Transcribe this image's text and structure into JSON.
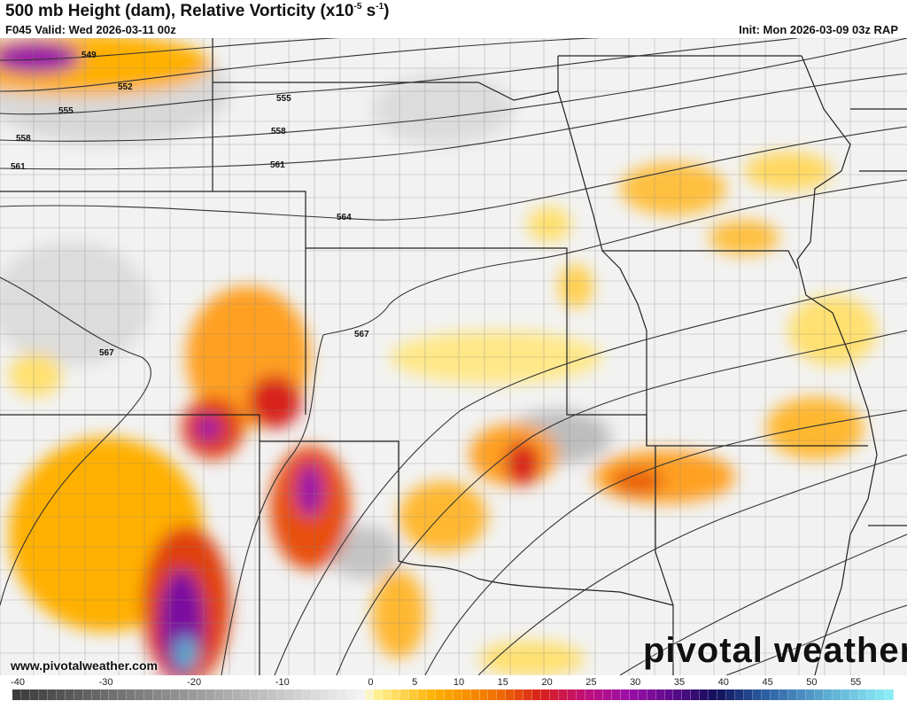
{
  "header": {
    "title": "500 mb Height (dam), Relative Vorticity (x10",
    "title_exp1": "-5",
    "title_mid": " s",
    "title_exp2": "-1",
    "title_end": ")",
    "valid": "F045 Valid: Wed 2026-03-11 00z",
    "init": "Init: Mon 2026-03-09 03z RAP"
  },
  "contour_labels": [
    "549",
    "552",
    "555",
    "558",
    "561",
    "555",
    "558",
    "561",
    "564",
    "567",
    "567"
  ],
  "watermark": "www.pivotalweather.com",
  "logo": "pivotal weather",
  "colorbar": {
    "min": -40,
    "max": 60,
    "tick_labels": [
      "-40",
      "-30",
      "-20",
      "-10",
      "0",
      "5",
      "10",
      "15",
      "20",
      "25",
      "30",
      "35",
      "40",
      "45",
      "50",
      "55"
    ],
    "tick_values": [
      -40,
      -30,
      -20,
      -10,
      0,
      5,
      10,
      15,
      20,
      25,
      30,
      35,
      40,
      45,
      50,
      55
    ],
    "color_stops": [
      [
        -40,
        "#3a3a3a"
      ],
      [
        0,
        "#f5f5f5"
      ],
      [
        1,
        "#fff59a"
      ],
      [
        8,
        "#ffb000"
      ],
      [
        15,
        "#f07000"
      ],
      [
        20,
        "#d8201c"
      ],
      [
        25,
        "#c0107a"
      ],
      [
        30,
        "#9a10a8"
      ],
      [
        35,
        "#5a0a8a"
      ],
      [
        40,
        "#10105a"
      ],
      [
        45,
        "#2a5aa0"
      ],
      [
        52,
        "#5aa8d0"
      ],
      [
        60,
        "#8ef0f8"
      ]
    ]
  }
}
